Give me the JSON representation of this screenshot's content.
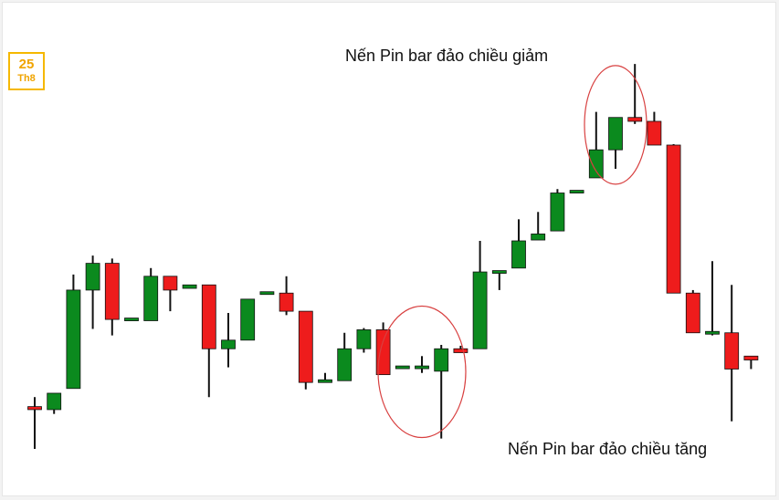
{
  "date_badge": {
    "day": "25",
    "month": "Th8"
  },
  "colors": {
    "bull": "#0b8a1e",
    "bear": "#ee1c1c",
    "wick": "#111111",
    "circle": "#d84040"
  },
  "chart_data": {
    "type": "candlestick",
    "title": "",
    "xlabel": "",
    "ylabel": "",
    "ylim": [
      0,
      100
    ],
    "grid": false,
    "annotations": [
      {
        "text": "Nến Pin bar đảo chiều giảm",
        "candle_index": 30
      },
      {
        "text": "Nến Pin bar đảo chiều tăng",
        "candle_index": 20
      }
    ],
    "candles": [
      {
        "o": 15.3,
        "h": 17.5,
        "l": 5.5,
        "c": 14.6
      },
      {
        "o": 14.6,
        "h": 18.4,
        "l": 13.6,
        "c": 18.4
      },
      {
        "o": 19.5,
        "h": 45.9,
        "l": 19.5,
        "c": 42.3
      },
      {
        "o": 42.3,
        "h": 50.3,
        "l": 33.3,
        "c": 48.5
      },
      {
        "o": 48.5,
        "h": 49.6,
        "l": 31.8,
        "c": 35.5
      },
      {
        "o": 35.5,
        "h": 35.5,
        "l": 35.5,
        "c": 35.5
      },
      {
        "o": 35.2,
        "h": 47.4,
        "l": 35.2,
        "c": 45.5
      },
      {
        "o": 45.5,
        "h": 45.5,
        "l": 37.4,
        "c": 42.3
      },
      {
        "o": 42.7,
        "h": 43.5,
        "l": 42.7,
        "c": 43.5
      },
      {
        "o": 43.5,
        "h": 43.5,
        "l": 17.5,
        "c": 28.7
      },
      {
        "o": 28.7,
        "h": 37.0,
        "l": 24.4,
        "c": 30.7
      },
      {
        "o": 30.7,
        "h": 40.2,
        "l": 30.7,
        "c": 40.2
      },
      {
        "o": 41.6,
        "h": 41.6,
        "l": 41.6,
        "c": 41.6
      },
      {
        "o": 41.6,
        "h": 45.5,
        "l": 36.5,
        "c": 37.4
      },
      {
        "o": 37.4,
        "h": 37.4,
        "l": 19.3,
        "c": 20.9
      },
      {
        "o": 21.1,
        "h": 23.1,
        "l": 21.1,
        "c": 21.3
      },
      {
        "o": 21.3,
        "h": 32.4,
        "l": 21.3,
        "c": 28.7
      },
      {
        "o": 28.7,
        "h": 33.5,
        "l": 27.8,
        "c": 33.1
      },
      {
        "o": 33.1,
        "h": 34.8,
        "l": 22.7,
        "c": 22.7
      },
      {
        "o": 24.4,
        "h": 24.4,
        "l": 24.4,
        "c": 24.4
      },
      {
        "o": 24.4,
        "h": 27.0,
        "l": 23.1,
        "c": 24.4
      },
      {
        "o": 23.5,
        "h": 29.6,
        "l": 7.9,
        "c": 28.7
      },
      {
        "o": 28.7,
        "h": 29.4,
        "l": 27.8,
        "c": 27.8
      },
      {
        "o": 28.7,
        "h": 53.7,
        "l": 28.7,
        "c": 46.5
      },
      {
        "o": 46.5,
        "h": 46.5,
        "l": 42.3,
        "c": 46.5
      },
      {
        "o": 47.4,
        "h": 58.7,
        "l": 47.4,
        "c": 53.7
      },
      {
        "o": 53.9,
        "h": 60.4,
        "l": 53.9,
        "c": 55.3
      },
      {
        "o": 56.0,
        "h": 65.7,
        "l": 56.0,
        "c": 64.8
      },
      {
        "o": 64.8,
        "h": 65.4,
        "l": 64.8,
        "c": 65.4
      },
      {
        "o": 68.3,
        "h": 83.6,
        "l": 68.3,
        "c": 74.8
      },
      {
        "o": 74.8,
        "h": 82.3,
        "l": 70.4,
        "c": 82.3
      },
      {
        "o": 82.3,
        "h": 94.7,
        "l": 80.8,
        "c": 81.4
      },
      {
        "o": 81.4,
        "h": 83.6,
        "l": 75.9,
        "c": 75.9
      },
      {
        "o": 75.9,
        "h": 76.1,
        "l": 41.6,
        "c": 41.6
      },
      {
        "o": 41.6,
        "h": 42.3,
        "l": 32.4,
        "c": 32.4
      },
      {
        "o": 32.4,
        "h": 49.0,
        "l": 31.8,
        "c": 32.4
      },
      {
        "o": 32.4,
        "h": 43.5,
        "l": 11.9,
        "c": 24.0
      },
      {
        "o": 27.0,
        "h": 27.0,
        "l": 24.0,
        "c": 26.1
      }
    ]
  }
}
